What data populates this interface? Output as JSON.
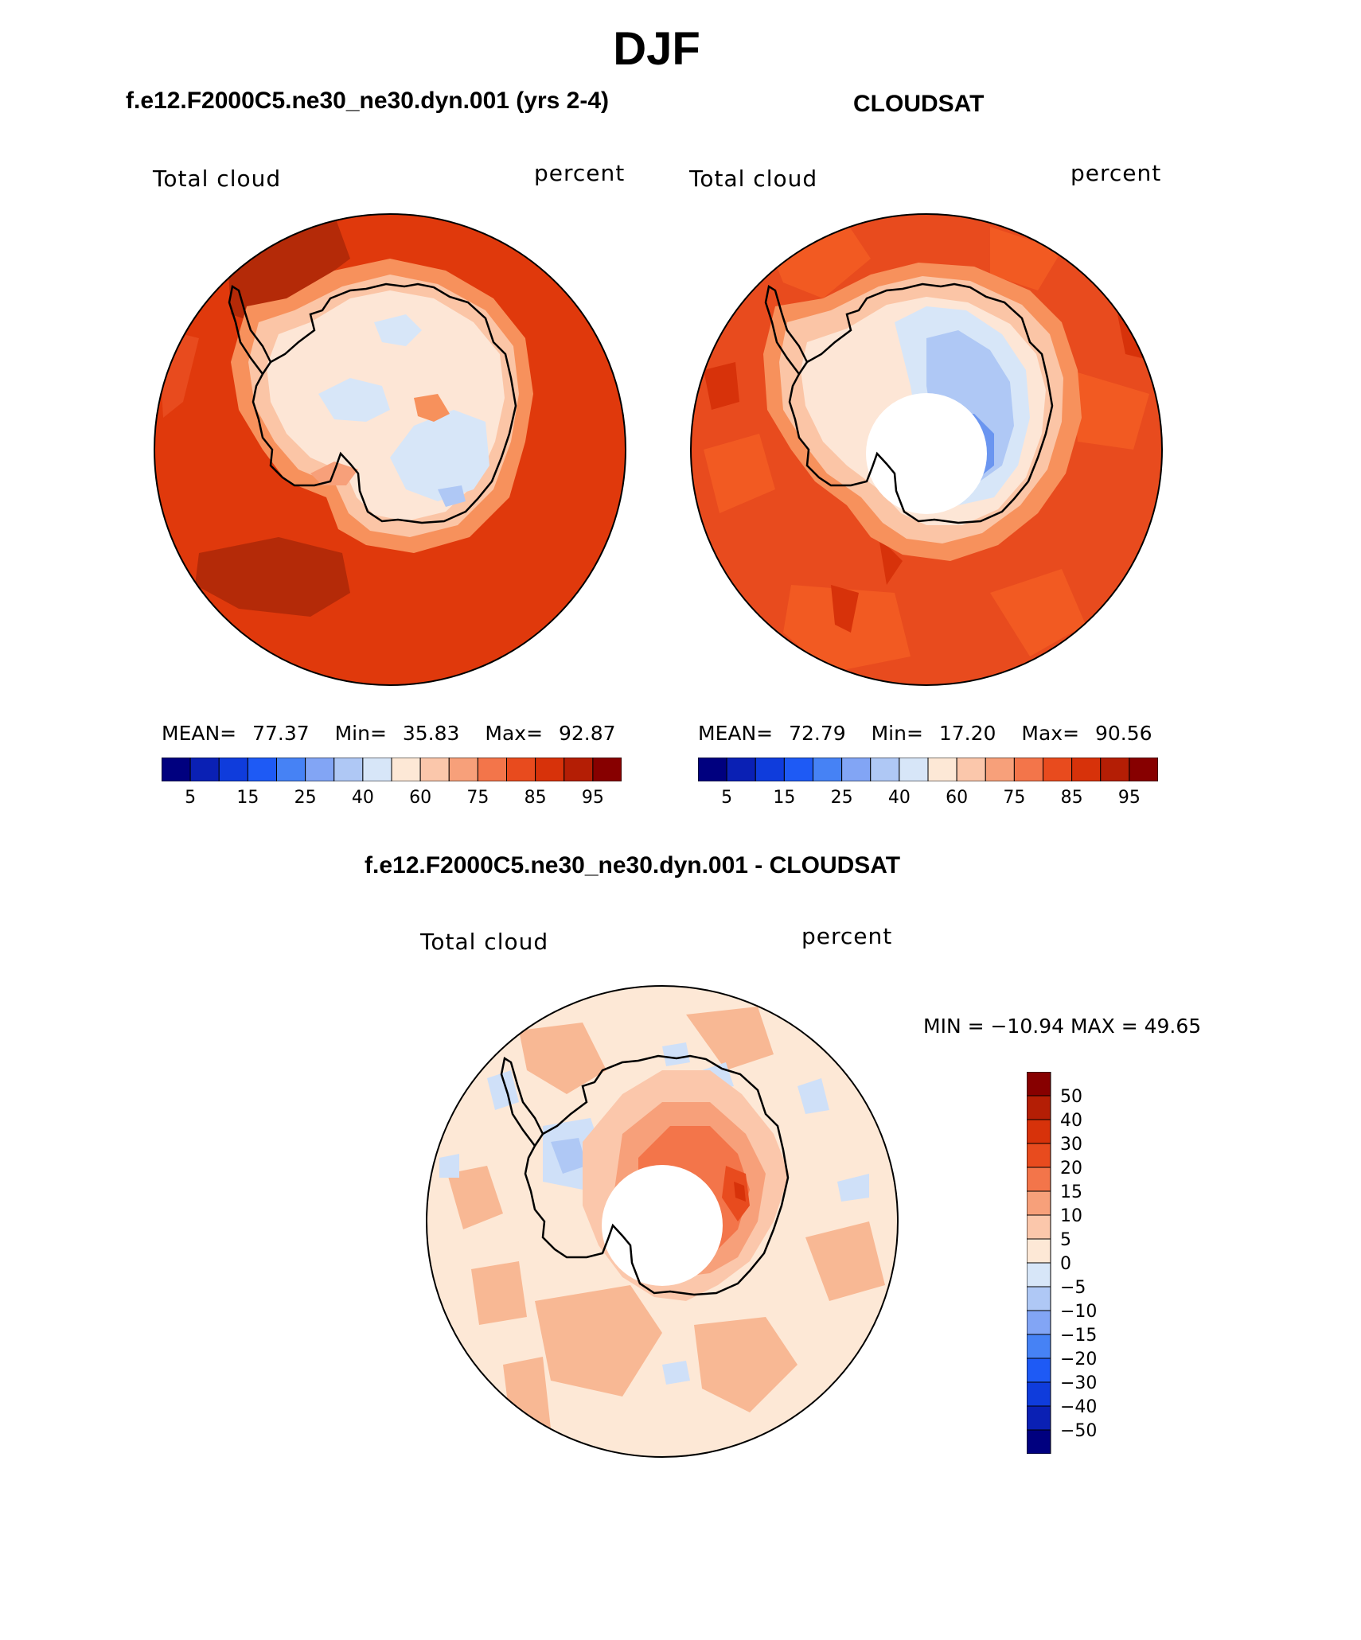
{
  "figure": {
    "season_title": "DJF",
    "panels": [
      {
        "case_title": "f.e12.F2000C5.ne30_ne30.dyn.001 (yrs 2-4)",
        "left_label": "Total cloud",
        "right_label": "percent",
        "stats": {
          "mean_label": "MEAN=",
          "mean": "77.37",
          "min_label": "Min=",
          "min": "35.83",
          "max_label": "Max=",
          "max": "92.87"
        }
      },
      {
        "case_title": "CLOUDSAT",
        "left_label": "Total cloud",
        "right_label": "percent",
        "stats": {
          "mean_label": "MEAN=",
          "mean": "72.79",
          "min_label": "Min=",
          "min": "17.20",
          "max_label": "Max=",
          "max": "90.56"
        }
      },
      {
        "case_title": "f.e12.F2000C5.ne30_ne30.dyn.001 - CLOUDSAT",
        "left_label": "Total cloud",
        "right_label": "percent",
        "minmax": "MIN = −10.94 MAX =   49.65"
      }
    ],
    "abs_colorbar": {
      "colors": [
        "#00007f",
        "#0a20b4",
        "#0f3cdc",
        "#1e5af5",
        "#4682f5",
        "#82a5f5",
        "#afc8f5",
        "#d7e6f8",
        "#fde8d6",
        "#fbc7ab",
        "#f7a07a",
        "#f3754a",
        "#e84b1e",
        "#d7320a",
        "#b41e05",
        "#870000"
      ],
      "tick_labels": [
        "5",
        "15",
        "25",
        "40",
        "60",
        "75",
        "85",
        "95"
      ]
    },
    "diff_colorbar": {
      "colors_top_to_bottom": [
        "#870000",
        "#b41e05",
        "#d7320a",
        "#e84b1e",
        "#f3754a",
        "#f7a07a",
        "#fbc7ab",
        "#fde8d6",
        "#d7e6f8",
        "#afc8f5",
        "#82a5f5",
        "#4682f5",
        "#1e5af5",
        "#0f3cdc",
        "#0a20b4",
        "#00007f"
      ],
      "tick_labels": [
        "50",
        "40",
        "30",
        "20",
        "15",
        "10",
        "5",
        "0",
        "−5",
        "−10",
        "−15",
        "−20",
        "−30",
        "−40",
        "−50"
      ]
    },
    "colors": {
      "ocean_high": "#e0390c",
      "ocean_dark": "#b42a08",
      "ocean_mid": "#f25a22",
      "coast_band": "#f7915c",
      "ice_edge": "#fbc5a6",
      "ice_light": "#fde6d6",
      "ice_blue": "#d7e6f8",
      "ice_blue2": "#afc8f5",
      "ice_blue3": "#6a95f0",
      "ice_blue4": "#1e5af5",
      "diff_bg": "#fde8d6",
      "diff_pos": "#f8b894",
      "diff_blue": "#cfe0f8"
    }
  }
}
